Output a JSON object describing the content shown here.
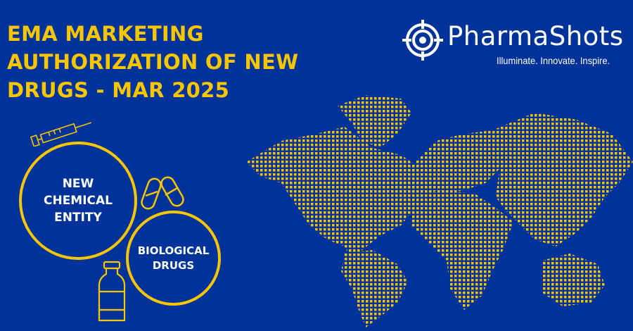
{
  "title": {
    "lines": [
      "EMA MARKETING",
      "AUTHORIZATION OF NEW",
      "DRUGS - MAR 2025"
    ]
  },
  "logo": {
    "name": "PharmaShots",
    "tagline": "Illuminate. Innovate. Inspire.",
    "icon": "crosshair-icon"
  },
  "categories": [
    {
      "lines": [
        "NEW",
        "CHEMICAL",
        "ENTITY"
      ]
    },
    {
      "lines": [
        "BIOLOGICAL",
        "DRUGS"
      ]
    }
  ],
  "colors": {
    "background": "#003399",
    "accent": "#f7c600",
    "text": "#ffffff"
  },
  "icons": [
    "syringe-icon",
    "capsules-icon",
    "vial-icon",
    "dotted-world-map"
  ]
}
